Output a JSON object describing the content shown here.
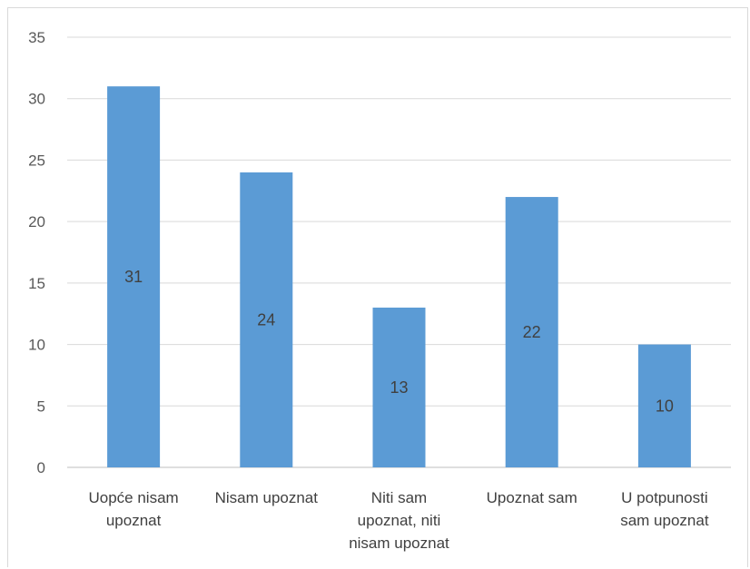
{
  "chart_data": {
    "type": "bar",
    "categories": [
      [
        "Uopće nisam",
        "upoznat"
      ],
      [
        "Nisam upoznat"
      ],
      [
        "Niti sam",
        "upoznat, niti",
        "nisam upoznat"
      ],
      [
        "Upoznat sam"
      ],
      [
        "U potpunosti",
        "sam upoznat"
      ]
    ],
    "values": [
      31,
      24,
      13,
      22,
      10
    ],
    "data_labels": [
      "31",
      "24",
      "13",
      "22",
      "10"
    ],
    "ylim": [
      0,
      35
    ],
    "yticks": [
      0,
      5,
      10,
      15,
      20,
      25,
      30,
      35
    ],
    "grid": true,
    "legend": "none",
    "colors": {
      "bar": "#5b9bd5",
      "grid": "#d9d9d9",
      "axis": "#bfbfbf"
    }
  }
}
